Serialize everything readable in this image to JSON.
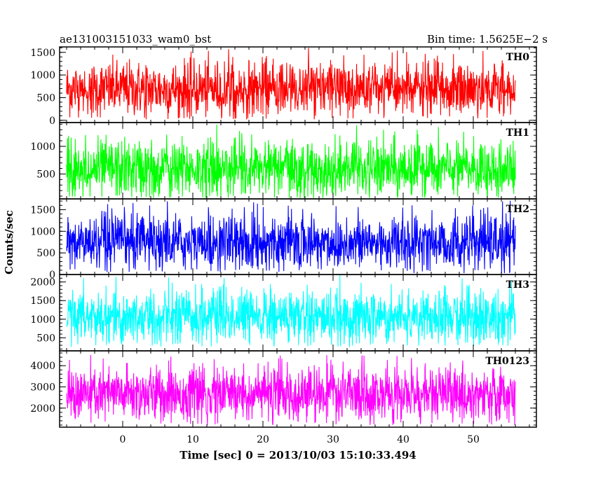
{
  "header": {
    "left_title": "ae131003151033_wam0_bst",
    "right_title": "Bin time: 1.5625E−2 s"
  },
  "chart_data": {
    "type": "line",
    "title": "ae131003151033_wam0_bst",
    "subtitle": "Bin time: 1.5625E−2 s",
    "xlabel": "Time [sec] 0 = 2013/10/03 15:10:33.494",
    "ylabel": "Counts/sec",
    "xlim": [
      -9,
      59
    ],
    "x_ticks": [
      0,
      10,
      20,
      30,
      40,
      50
    ],
    "x_tick_labels": [
      "0",
      "10",
      "20",
      "30",
      "40",
      "50"
    ],
    "data_x_range": [
      -8,
      56
    ],
    "bin_time": 0.015625,
    "grid": false,
    "panels": [
      {
        "name": "TH0",
        "color": "#ff0000",
        "ylim": [
          -50,
          1620
        ],
        "y_ticks": [
          0,
          500,
          1000,
          1500
        ],
        "y_tick_labels": [
          "0",
          "500",
          "1000",
          "1500"
        ],
        "mean": 690,
        "min": 20,
        "max": 1600
      },
      {
        "name": "TH1",
        "color": "#00ff00",
        "ylim": [
          50,
          1430
        ],
        "y_ticks": [
          500,
          1000
        ],
        "y_tick_labels": [
          "500",
          "1000"
        ],
        "mean": 590,
        "min": 60,
        "max": 1420
      },
      {
        "name": "TH2",
        "color": "#0000ff",
        "ylim": [
          0,
          1750
        ],
        "y_ticks": [
          0,
          500,
          1000,
          1500
        ],
        "y_tick_labels": [
          "0",
          "500",
          "1000",
          "1500"
        ],
        "mean": 730,
        "min": 30,
        "max": 1750
      },
      {
        "name": "TH3",
        "color": "#00ffff",
        "ylim": [
          150,
          2200
        ],
        "y_ticks": [
          500,
          1000,
          1500,
          2000
        ],
        "y_tick_labels": [
          "500",
          "1000",
          "1500",
          "2000"
        ],
        "mean": 1050,
        "min": 250,
        "max": 2200
      },
      {
        "name": "TH0123",
        "color": "#ff00ff",
        "ylim": [
          1100,
          4700
        ],
        "y_ticks": [
          2000,
          3000,
          4000
        ],
        "y_tick_labels": [
          "2000",
          "3000",
          "4000"
        ],
        "mean": 2650,
        "min": 1200,
        "max": 4600
      }
    ]
  }
}
